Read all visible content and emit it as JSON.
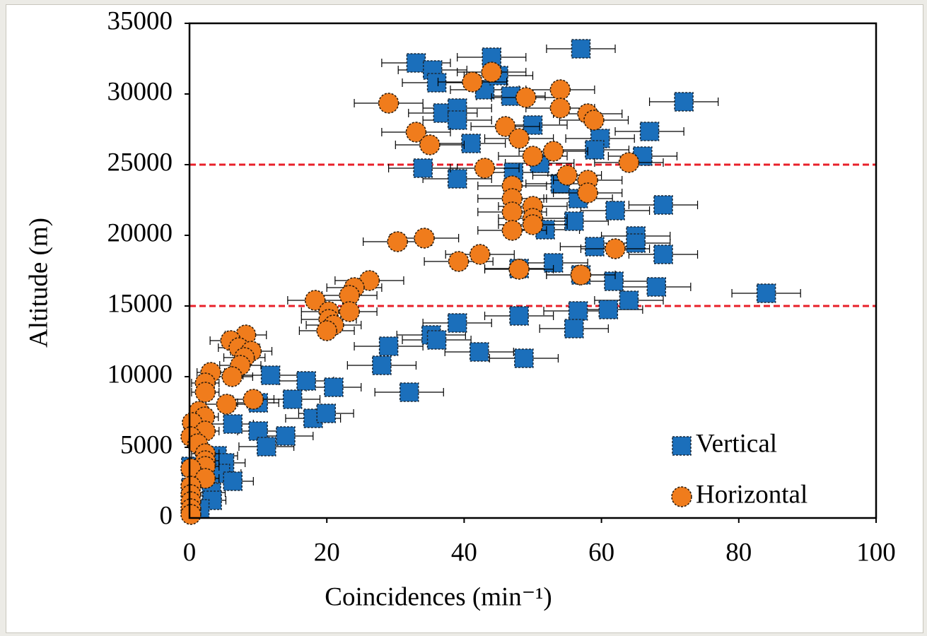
{
  "chart_data": {
    "type": "scatter",
    "xlabel": "Coincidences (min⁻¹)",
    "ylabel": "Altitude (m)",
    "xlim": [
      0,
      100
    ],
    "xticks": [
      0,
      20,
      40,
      60,
      80,
      100
    ],
    "ylim": [
      0,
      35000
    ],
    "yticks": [
      0,
      5000,
      10000,
      15000,
      20000,
      25000,
      30000,
      35000
    ],
    "hlines": [
      25000,
      15000
    ],
    "hline_color": "#e8202a",
    "legend": "lower right",
    "series": [
      {
        "name": "Vertical",
        "marker": "square",
        "color": "#1b6fbb",
        "x": [
          57,
          33,
          44,
          35.4,
          36,
          43,
          45,
          46.8,
          72,
          36.9,
          39,
          39,
          50,
          67,
          59.8,
          59,
          41,
          66,
          51,
          34,
          47.2,
          39,
          54,
          56.6,
          69,
          62,
          56,
          51.8,
          65,
          65,
          59,
          69,
          53,
          48,
          57,
          61.8,
          68,
          84,
          64,
          61,
          56.6,
          48,
          56,
          39,
          35.2,
          36,
          29,
          42.2,
          48.7,
          28,
          32,
          21,
          11.8,
          17,
          15,
          10,
          18,
          19.9,
          6.3,
          10,
          14,
          11.2,
          4,
          5.1,
          4.5,
          6.3,
          3.2,
          3.3,
          1.5,
          0.2,
          0.2
        ],
        "y": [
          33200,
          32200,
          32600,
          31700,
          30800,
          30300,
          31300,
          29850,
          29450,
          28650,
          29000,
          28150,
          27800,
          27350,
          26850,
          26050,
          26500,
          25600,
          25100,
          24750,
          24450,
          24000,
          23650,
          22600,
          22150,
          21750,
          21000,
          20400,
          19950,
          19450,
          19200,
          18650,
          18050,
          17650,
          17200,
          16750,
          16350,
          15900,
          15400,
          14750,
          14650,
          14300,
          13400,
          13800,
          12950,
          12600,
          12150,
          11750,
          11300,
          10800,
          8900,
          9250,
          10100,
          9700,
          8400,
          8150,
          7050,
          7400,
          6650,
          6150,
          5800,
          5050,
          4400,
          3900,
          3150,
          2600,
          1800,
          1250,
          650,
          3650,
          2150
        ],
        "xerr": [
          5,
          5,
          5,
          5,
          5,
          5,
          5,
          5,
          5,
          5,
          5,
          5,
          5,
          5,
          5,
          5,
          5,
          5,
          5,
          5,
          5,
          5,
          5,
          5,
          5,
          5,
          5,
          5,
          5,
          5,
          5,
          5,
          5,
          5,
          5,
          5,
          5,
          5,
          5,
          5,
          5,
          5,
          5,
          5,
          5,
          5,
          5,
          5,
          5,
          5,
          5,
          4,
          4,
          4,
          4,
          3,
          4,
          4,
          3,
          3,
          4,
          4,
          3,
          3,
          3,
          3,
          2,
          2,
          1,
          1,
          1
        ]
      },
      {
        "name": "Horizontal",
        "marker": "circle",
        "color": "#f07c1c",
        "x": [
          29,
          44,
          41.2,
          54,
          49,
          54,
          58,
          58.9,
          46,
          33,
          48,
          35,
          53,
          50,
          64,
          43,
          55,
          58,
          47,
          58,
          47,
          50,
          47,
          50,
          50,
          47,
          30.3,
          34.2,
          62,
          42.3,
          39.2,
          48,
          57,
          26.2,
          24,
          23.3,
          18.3,
          20.3,
          23.3,
          20.3,
          21,
          20,
          8.2,
          6,
          7.2,
          9,
          8,
          7.4,
          3.1,
          6.2,
          2.3,
          2.3,
          9.3,
          5.4,
          1.4,
          2.2,
          0.4,
          2.3,
          0.2,
          1.2,
          2.3,
          2.3,
          2.3,
          0.2,
          2.3,
          0.2,
          0.2,
          0.2,
          0.2,
          0.2
        ],
        "y": [
          29350,
          31550,
          30850,
          30300,
          29750,
          29000,
          28600,
          28150,
          27700,
          27300,
          26850,
          26400,
          25950,
          25600,
          25150,
          24750,
          24250,
          23900,
          23500,
          23000,
          22600,
          22050,
          21650,
          21200,
          20750,
          20350,
          19550,
          19800,
          19050,
          18650,
          18150,
          17600,
          17200,
          16800,
          16300,
          15750,
          15400,
          14600,
          14600,
          14050,
          13650,
          13250,
          12950,
          12550,
          12050,
          11800,
          11350,
          10800,
          10300,
          10000,
          9550,
          8900,
          8400,
          8050,
          7550,
          7150,
          6750,
          6150,
          5750,
          5250,
          4550,
          4050,
          3650,
          3500,
          2800,
          2250,
          1650,
          1150,
          650,
          250
        ],
        "xerr": [
          5,
          5,
          5,
          5,
          5,
          5,
          5,
          5,
          5,
          5,
          5,
          5,
          5,
          5,
          5,
          5,
          5,
          5,
          5,
          5,
          5,
          5,
          5,
          5,
          5,
          5,
          5,
          5,
          5,
          5,
          5,
          5,
          5,
          5,
          4,
          4,
          4,
          4,
          4,
          4,
          4,
          4,
          3,
          3,
          3,
          3,
          3,
          3,
          2,
          3,
          2,
          2,
          3,
          3,
          1,
          2,
          1,
          2,
          1,
          1,
          2,
          2,
          2,
          1,
          2,
          1,
          1,
          1,
          1,
          1
        ]
      }
    ]
  }
}
